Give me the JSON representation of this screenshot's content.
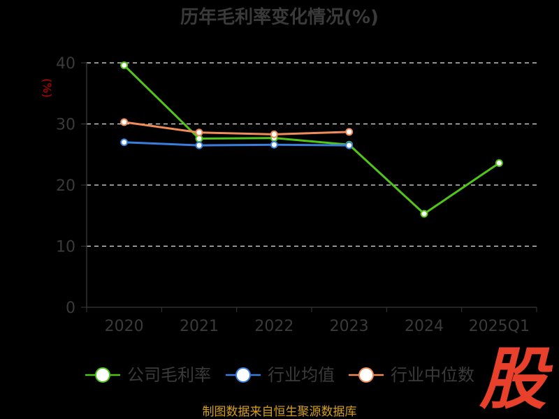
{
  "chart_data": {
    "type": "line",
    "title": "历年毛利率变化情况(%)",
    "ylabel": "(%)",
    "categories": [
      "2020",
      "2021",
      "2022",
      "2023",
      "2024",
      "2025Q1"
    ],
    "ylim": [
      0,
      40
    ],
    "yticks": [
      "0",
      "10",
      "20",
      "30",
      "40"
    ],
    "grid": true,
    "legend_position": "bottom",
    "series": [
      {
        "name": "公司毛利率",
        "color": "#52c41a",
        "values": [
          39.6,
          27.6,
          27.7,
          26.6,
          15.3,
          23.6
        ]
      },
      {
        "name": "行业均值",
        "color": "#3b7ddd",
        "values": [
          27.0,
          26.5,
          26.6,
          26.5,
          null,
          null
        ]
      },
      {
        "name": "行业中位数",
        "color": "#f08c5a",
        "values": [
          30.3,
          28.6,
          28.3,
          28.7,
          null,
          null
        ]
      }
    ]
  },
  "source_text": "制图数据来自恒生聚源数据库",
  "logo_char": "股"
}
